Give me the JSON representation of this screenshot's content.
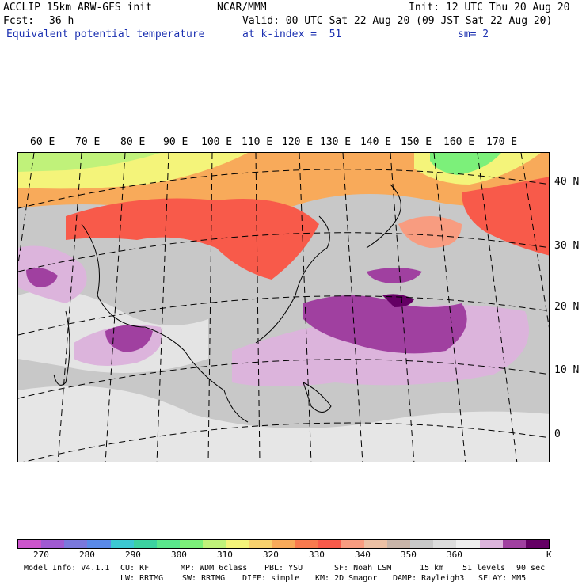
{
  "header": {
    "model": "ACCLIP 15km ARW-GFS init",
    "center": "NCAR/MMM",
    "init": "Init: 12 UTC Thu 20 Aug 20",
    "fcst_label": "Fcst:",
    "fcst_value": "36 h",
    "valid": "Valid: 00 UTC Sat 22 Aug 20 (09 JST Sat 22 Aug 20)",
    "field": "Equivalent potential temperature",
    "level": "at k-index =  51",
    "smooth": "sm= 2"
  },
  "lon_labels": [
    "60 E",
    "70 E",
    "80 E",
    "90 E",
    "100 E",
    "110 E",
    "120 E",
    "130 E",
    "140 E",
    "150 E",
    "160 E",
    "170 E"
  ],
  "lat_labels": [
    "40 N",
    "30 N",
    "20 N",
    "10 N",
    "0"
  ],
  "colorbar": {
    "colors": [
      "#cc55cc",
      "#a05ad2",
      "#7a78dc",
      "#5a8ae8",
      "#3cc8d2",
      "#3cd2a0",
      "#5ae68c",
      "#7cf07a",
      "#c0f27a",
      "#f4f47a",
      "#f8d26e",
      "#f8aa5a",
      "#f87a4e",
      "#f85a4a",
      "#f89c80",
      "#ecc0a4",
      "#c8b4a8",
      "#c8c8c8",
      "#dcdcdc",
      "#eeeeee",
      "#dcb4dc",
      "#a040a0",
      "#640064"
    ],
    "ticks": [
      "270",
      "280",
      "290",
      "300",
      "310",
      "320",
      "330",
      "340",
      "350",
      "360"
    ],
    "unit": "K"
  },
  "footer": {
    "model_info": "Model Info: V4.1.1",
    "cu": "CU: KF",
    "mp": "MP: WDM 6class",
    "pbl": "PBL: YSU",
    "sf": "SF: Noah LSM",
    "res": "15 km",
    "levels": "51 levels",
    "dt": "90 sec",
    "lw": "LW: RRTMG",
    "sw": "SW: RRTMG",
    "diff": "DIFF: simple",
    "km": "KM: 2D Smagor",
    "damp": "DAMP: Rayleigh3",
    "sflay": "SFLAY: MM5"
  }
}
